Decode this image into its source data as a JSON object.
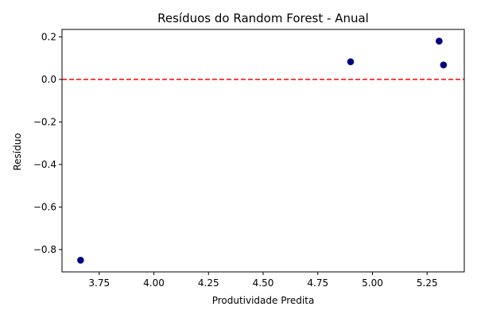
{
  "chart_data": {
    "type": "scatter",
    "title": "Resíduos do Random Forest - Anual",
    "xlabel": "Produtividade Predita",
    "ylabel": "Resíduo",
    "xlim": [
      3.58,
      5.42
    ],
    "ylim": [
      -0.905,
      0.235
    ],
    "x_ticks": [
      3.75,
      4.0,
      4.25,
      4.5,
      4.75,
      5.0,
      5.25
    ],
    "x_tick_labels": [
      "3.75",
      "4.00",
      "4.25",
      "4.50",
      "4.75",
      "5.00",
      "5.25"
    ],
    "y_ticks": [
      0.2,
      0.0,
      -0.2,
      -0.4,
      -0.6,
      -0.8
    ],
    "y_tick_labels": [
      "0.2",
      "0.0",
      "−0.2",
      "−0.4",
      "−0.6",
      "−0.8"
    ],
    "grid": false,
    "reference_line": {
      "y": 0.0,
      "color": "#ff0000",
      "style": "dashed"
    },
    "series": [
      {
        "color": "#000080",
        "points": [
          {
            "x": 3.665,
            "y": -0.85
          },
          {
            "x": 4.9,
            "y": 0.083
          },
          {
            "x": 5.305,
            "y": 0.18
          },
          {
            "x": 5.325,
            "y": 0.068
          }
        ]
      }
    ]
  }
}
